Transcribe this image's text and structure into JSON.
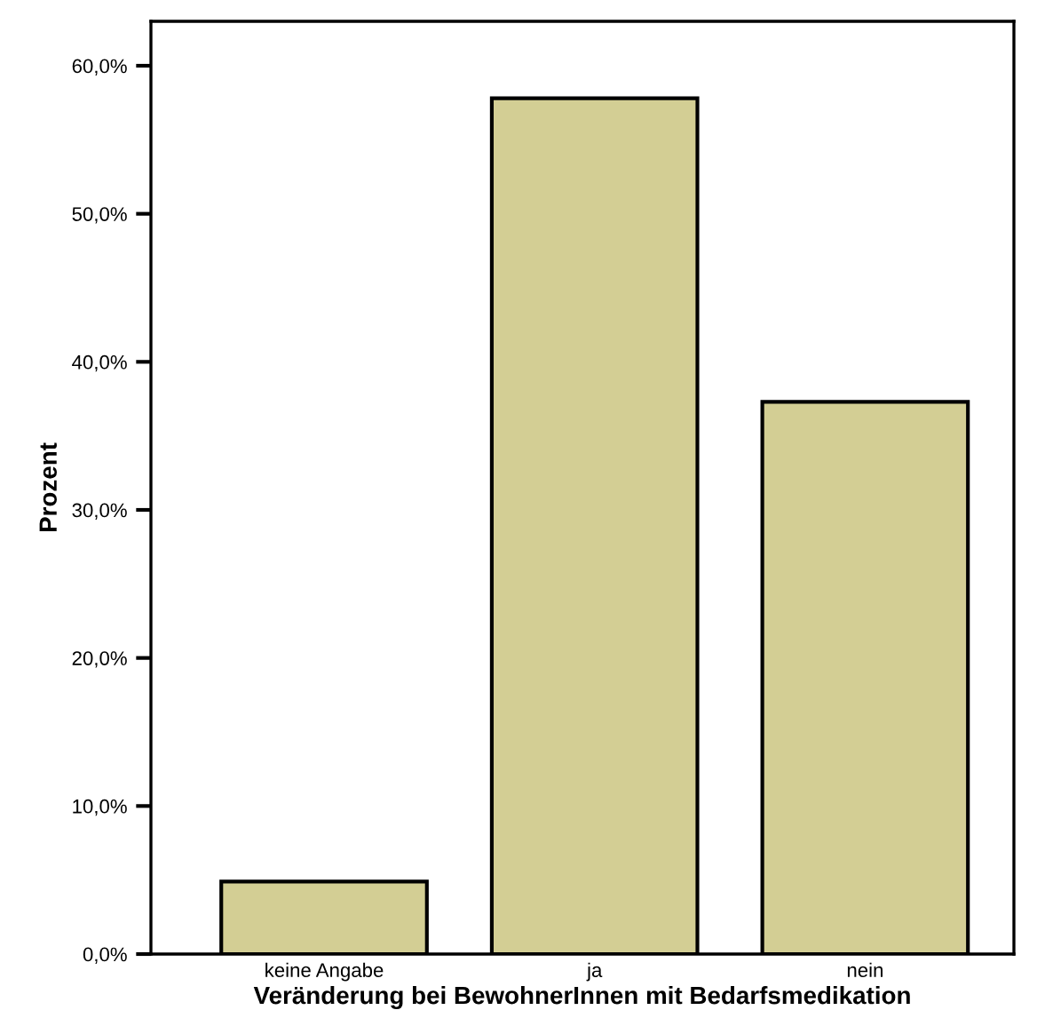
{
  "chart_data": {
    "type": "bar",
    "xlabel": "Veränderung bei BewohnerInnen mit Bedarfsmedikation",
    "ylabel": "Prozent",
    "categories": [
      "keine Angabe",
      "ja",
      "nein"
    ],
    "values": [
      4.9,
      57.8,
      37.3
    ],
    "color": "#d3ce94",
    "ylim": [
      0,
      63
    ],
    "yticks": [
      {
        "value": 0,
        "label": "0,0%"
      },
      {
        "value": 10,
        "label": "10,0%"
      },
      {
        "value": 20,
        "label": "20,0%"
      },
      {
        "value": 30,
        "label": "30,0%"
      },
      {
        "value": 40,
        "label": "40,0%"
      },
      {
        "value": 50,
        "label": "50,0%"
      },
      {
        "value": 60,
        "label": "60,0%"
      }
    ],
    "grid": false,
    "legend": false
  }
}
